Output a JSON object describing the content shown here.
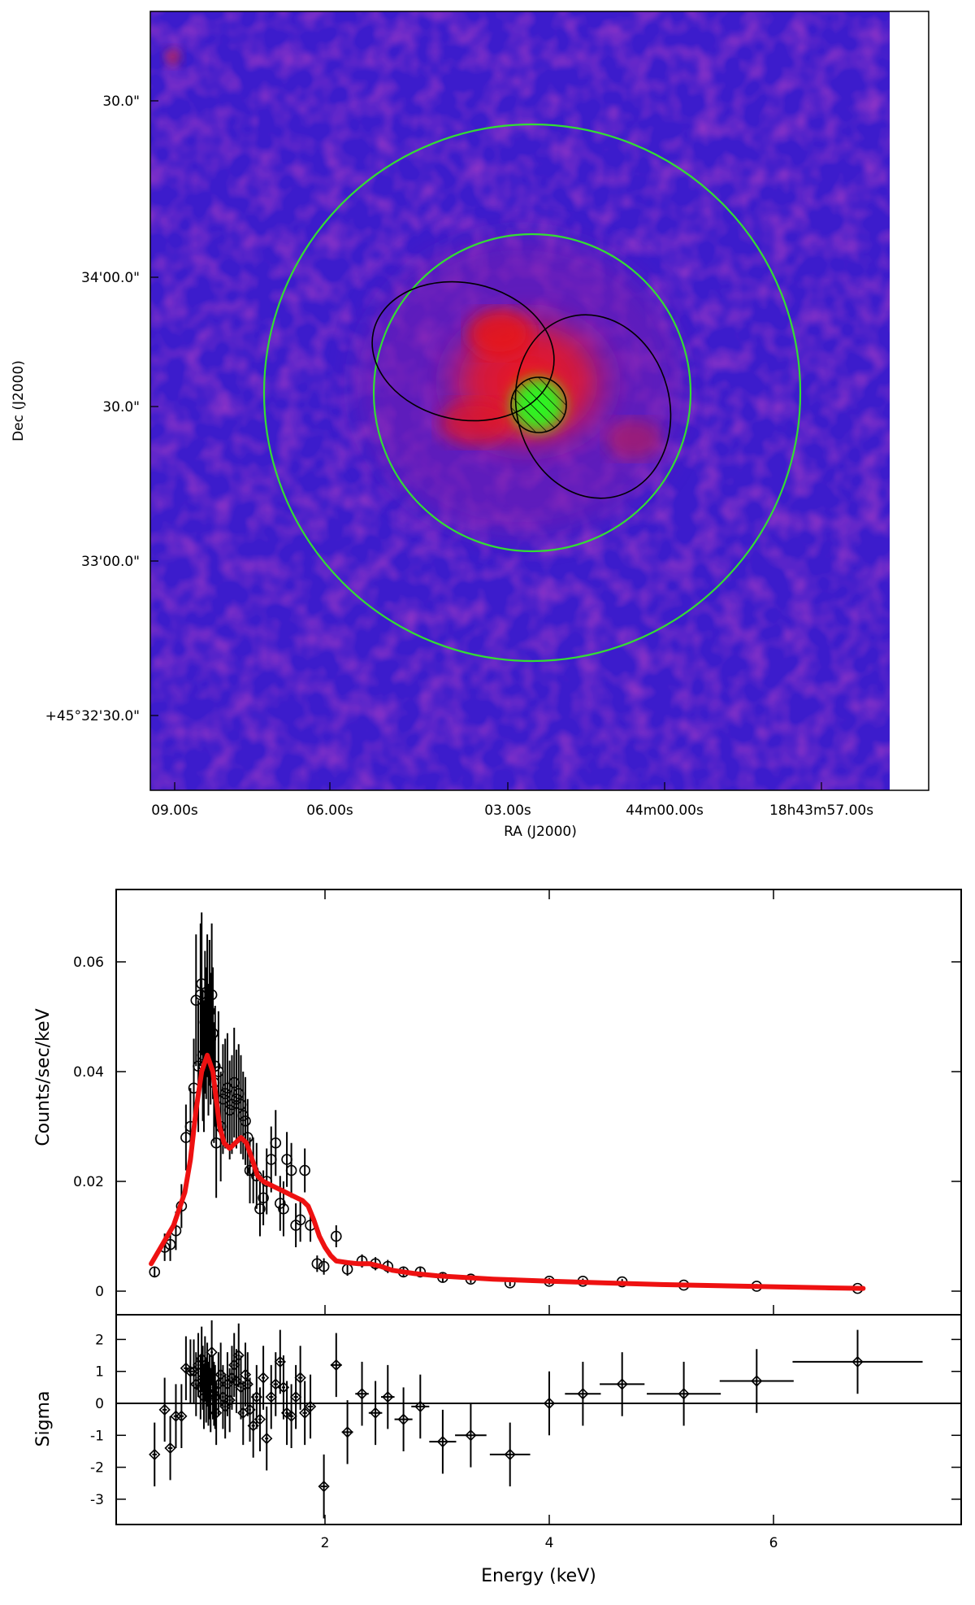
{
  "chart_data": [
    {
      "type": "image",
      "title": "",
      "xlabel": "RA (J2000)",
      "ylabel": "Dec (J2000)",
      "x_ticks": [
        "09.00s",
        "06.00s",
        "03.00s",
        "44m00.00s",
        "18h43m57.00s"
      ],
      "y_ticks": [
        "30.0\"",
        "34'00.0\"",
        "30.0\"",
        "33'00.0\"",
        "+45°32'30.0\""
      ],
      "regions": [
        {
          "shape": "circle",
          "color": "#33dd33",
          "role": "outer background annulus"
        },
        {
          "shape": "circle",
          "color": "#33dd33",
          "role": "inner background annulus"
        },
        {
          "shape": "ellipse",
          "color": "#000000",
          "role": "extended emission region (east)"
        },
        {
          "shape": "ellipse",
          "color": "#000000",
          "role": "extended emission region (west)"
        },
        {
          "shape": "circle",
          "color": "#000000",
          "role": "excluded point source (hatched)"
        }
      ],
      "colors": {
        "background": "#3c1ccc",
        "emission": "#e02020",
        "point_source": "#22ee22"
      }
    },
    {
      "type": "scatter",
      "title": "",
      "xlabel": "Energy (keV)",
      "ylabel": "Counts/sec/keV",
      "xlim": [
        0,
        7.5
      ],
      "ylim": [
        -0.003,
        0.072
      ],
      "xticks": [
        2,
        4,
        6
      ],
      "yticks": [
        0,
        0.02,
        0.04,
        0.06
      ],
      "ytick_labels": [
        "0",
        "0.02",
        "0.04",
        "0.06"
      ],
      "series": [
        {
          "name": "data",
          "marker": "circle",
          "color": "#000000",
          "x": [
            0.48,
            0.57,
            0.62,
            0.67,
            0.72,
            0.76,
            0.8,
            0.83,
            0.85,
            0.87,
            0.89,
            0.9,
            0.91,
            0.92,
            0.93,
            0.94,
            0.95,
            0.96,
            0.97,
            0.98,
            0.99,
            1.0,
            1.01,
            1.02,
            1.03,
            1.05,
            1.07,
            1.09,
            1.11,
            1.13,
            1.15,
            1.17,
            1.19,
            1.21,
            1.23,
            1.25,
            1.27,
            1.29,
            1.31,
            1.33,
            1.36,
            1.39,
            1.42,
            1.45,
            1.48,
            1.52,
            1.56,
            1.6,
            1.63,
            1.66,
            1.7,
            1.74,
            1.78,
            1.82,
            1.87,
            1.93,
            1.99,
            2.1,
            2.2,
            2.33,
            2.45,
            2.56,
            2.7,
            2.85,
            3.05,
            3.3,
            3.65,
            4.0,
            4.3,
            4.65,
            5.2,
            5.85,
            6.75
          ],
          "y": [
            0.0035,
            0.008,
            0.0085,
            0.011,
            0.0155,
            0.028,
            0.03,
            0.037,
            0.053,
            0.041,
            0.054,
            0.056,
            0.043,
            0.041,
            0.049,
            0.047,
            0.052,
            0.044,
            0.051,
            0.046,
            0.054,
            0.047,
            0.038,
            0.041,
            0.027,
            0.04,
            0.03,
            0.035,
            0.036,
            0.037,
            0.033,
            0.034,
            0.038,
            0.035,
            0.036,
            0.034,
            0.032,
            0.031,
            0.028,
            0.022,
            0.022,
            0.021,
            0.015,
            0.017,
            0.02,
            0.024,
            0.027,
            0.016,
            0.015,
            0.024,
            0.022,
            0.012,
            0.013,
            0.022,
            0.012,
            0.005,
            0.0045,
            0.01,
            0.004,
            0.0055,
            0.005,
            0.0045,
            0.0035,
            0.0035,
            0.0025,
            0.0022,
            0.0015,
            0.0018,
            0.0018,
            0.0017,
            0.0011,
            0.0009,
            0.0005
          ],
          "yerr": [
            0.001,
            0.0025,
            0.003,
            0.0035,
            0.004,
            0.006,
            0.007,
            0.009,
            0.012,
            0.012,
            0.013,
            0.013,
            0.012,
            0.012,
            0.013,
            0.012,
            0.013,
            0.012,
            0.013,
            0.012,
            0.013,
            0.012,
            0.011,
            0.011,
            0.01,
            0.011,
            0.01,
            0.01,
            0.01,
            0.01,
            0.009,
            0.009,
            0.01,
            0.009,
            0.009,
            0.009,
            0.008,
            0.008,
            0.007,
            0.006,
            0.006,
            0.006,
            0.005,
            0.005,
            0.006,
            0.006,
            0.006,
            0.005,
            0.005,
            0.005,
            0.005,
            0.004,
            0.004,
            0.004,
            0.003,
            0.0015,
            0.0015,
            0.002,
            0.0012,
            0.0012,
            0.0012,
            0.0012,
            0.001,
            0.001,
            0.0008,
            0.0007,
            0.0006,
            0.0006,
            0.0005,
            0.0005,
            0.0004,
            0.0004,
            0.0003
          ]
        },
        {
          "name": "model",
          "line": true,
          "color": "#ee1111",
          "x": [
            0.45,
            0.55,
            0.65,
            0.7,
            0.75,
            0.8,
            0.85,
            0.9,
            0.95,
            1.0,
            1.03,
            1.06,
            1.1,
            1.15,
            1.2,
            1.25,
            1.3,
            1.35,
            1.4,
            1.45,
            1.5,
            1.55,
            1.6,
            1.65,
            1.7,
            1.75,
            1.8,
            1.85,
            1.9,
            1.95,
            2.0,
            2.05,
            2.1,
            2.2,
            2.3,
            2.4,
            2.5,
            2.6,
            2.8,
            3.0,
            3.5,
            4.0,
            4.5,
            5.0,
            5.5,
            6.0,
            6.5,
            6.8
          ],
          "y": [
            0.005,
            0.0085,
            0.012,
            0.015,
            0.018,
            0.024,
            0.033,
            0.04,
            0.043,
            0.04,
            0.035,
            0.03,
            0.027,
            0.026,
            0.027,
            0.028,
            0.027,
            0.024,
            0.021,
            0.02,
            0.0195,
            0.019,
            0.0185,
            0.018,
            0.0175,
            0.017,
            0.0165,
            0.0155,
            0.013,
            0.01,
            0.008,
            0.0065,
            0.0055,
            0.0052,
            0.005,
            0.005,
            0.0045,
            0.0038,
            0.0032,
            0.0028,
            0.0022,
            0.0018,
            0.0015,
            0.0012,
            0.001,
            0.0008,
            0.0006,
            0.0005
          ]
        }
      ]
    },
    {
      "type": "scatter",
      "title": "",
      "xlabel": "Energy (keV)",
      "ylabel": "Sigma",
      "xlim": [
        0,
        7.5
      ],
      "ylim": [
        -3.8,
        2.8
      ],
      "xticks": [
        2,
        4,
        6
      ],
      "xtick_labels": [
        "2",
        "4",
        "6"
      ],
      "yticks": [
        -3,
        -2,
        -1,
        0,
        1,
        2
      ],
      "ytick_labels": [
        "-3",
        "-2",
        "-1",
        "0",
        "1",
        "2"
      ],
      "reference_line": 0,
      "series": [
        {
          "name": "residuals",
          "marker": "diamond",
          "color": "#000000",
          "x": [
            0.48,
            0.57,
            0.62,
            0.67,
            0.72,
            0.76,
            0.8,
            0.83,
            0.85,
            0.87,
            0.89,
            0.9,
            0.91,
            0.92,
            0.93,
            0.94,
            0.95,
            0.96,
            0.97,
            0.98,
            0.99,
            1.0,
            1.01,
            1.02,
            1.03,
            1.05,
            1.07,
            1.09,
            1.11,
            1.13,
            1.15,
            1.17,
            1.19,
            1.21,
            1.23,
            1.25,
            1.27,
            1.29,
            1.31,
            1.33,
            1.36,
            1.39,
            1.42,
            1.45,
            1.48,
            1.52,
            1.56,
            1.6,
            1.63,
            1.66,
            1.7,
            1.74,
            1.78,
            1.82,
            1.87,
            1.99,
            2.1,
            2.2,
            2.33,
            2.45,
            2.56,
            2.7,
            2.85,
            3.05,
            3.3,
            3.65,
            4.0,
            4.3,
            4.65,
            5.2,
            5.85,
            6.75
          ],
          "y": [
            -1.6,
            -0.2,
            -1.4,
            -0.4,
            -0.4,
            1.1,
            1.0,
            1.0,
            0.6,
            1.2,
            0.5,
            1.4,
            0.8,
            0.2,
            1.1,
            0.4,
            0.9,
            0.3,
            0.5,
            0.1,
            1.6,
            0.5,
            0.3,
            0.2,
            -0.3,
            0.6,
            0.9,
            0.2,
            -0.1,
            0.6,
            0.1,
            0.8,
            1.2,
            0.7,
            1.5,
            0.5,
            -0.3,
            0.9,
            0.6,
            -0.2,
            -0.7,
            0.2,
            -0.5,
            0.8,
            -1.1,
            0.2,
            0.6,
            1.3,
            0.5,
            -0.3,
            -0.4,
            0.2,
            0.8,
            -0.3,
            -0.1,
            -2.6,
            1.2,
            -0.9,
            0.3,
            -0.3,
            0.2,
            -0.5,
            -0.1,
            -1.2,
            -1.0,
            -1.6,
            0.0,
            0.3,
            0.6,
            0.3,
            0.7,
            1.3
          ],
          "xerr": [
            0.02,
            0.02,
            0.02,
            0.02,
            0.02,
            0.02,
            0.02,
            0.01,
            0.01,
            0.01,
            0.01,
            0.01,
            0.01,
            0.01,
            0.01,
            0.01,
            0.01,
            0.01,
            0.01,
            0.01,
            0.01,
            0.01,
            0.01,
            0.01,
            0.01,
            0.01,
            0.01,
            0.01,
            0.01,
            0.01,
            0.01,
            0.01,
            0.01,
            0.01,
            0.01,
            0.01,
            0.01,
            0.01,
            0.01,
            0.01,
            0.015,
            0.015,
            0.015,
            0.015,
            0.015,
            0.02,
            0.02,
            0.02,
            0.015,
            0.015,
            0.02,
            0.02,
            0.02,
            0.02,
            0.025,
            0.03,
            0.05,
            0.05,
            0.06,
            0.06,
            0.06,
            0.08,
            0.08,
            0.12,
            0.14,
            0.18,
            0.17,
            0.16,
            0.2,
            0.33,
            0.33,
            0.58
          ],
          "yerr": [
            1.0,
            1.0,
            1.0,
            1.0,
            1.0,
            1.0,
            1.0,
            1.0,
            1.0,
            1.0,
            1.0,
            1.0,
            1.0,
            1.0,
            1.0,
            1.0,
            1.0,
            1.0,
            1.0,
            1.0,
            1.0,
            1.0,
            1.0,
            1.0,
            1.0,
            1.0,
            1.0,
            1.0,
            1.0,
            1.0,
            1.0,
            1.0,
            1.0,
            1.0,
            1.0,
            1.0,
            1.0,
            1.0,
            1.0,
            1.0,
            1.0,
            1.0,
            1.0,
            1.0,
            1.0,
            1.0,
            1.0,
            1.0,
            1.0,
            1.0,
            1.0,
            1.0,
            1.0,
            1.0,
            1.0,
            1.0,
            1.0,
            1.0,
            1.0,
            1.0,
            1.0,
            1.0,
            1.0,
            1.0,
            1.0,
            1.0,
            1.0,
            1.0,
            1.0,
            1.0,
            1.0,
            1.0
          ]
        }
      ]
    }
  ]
}
